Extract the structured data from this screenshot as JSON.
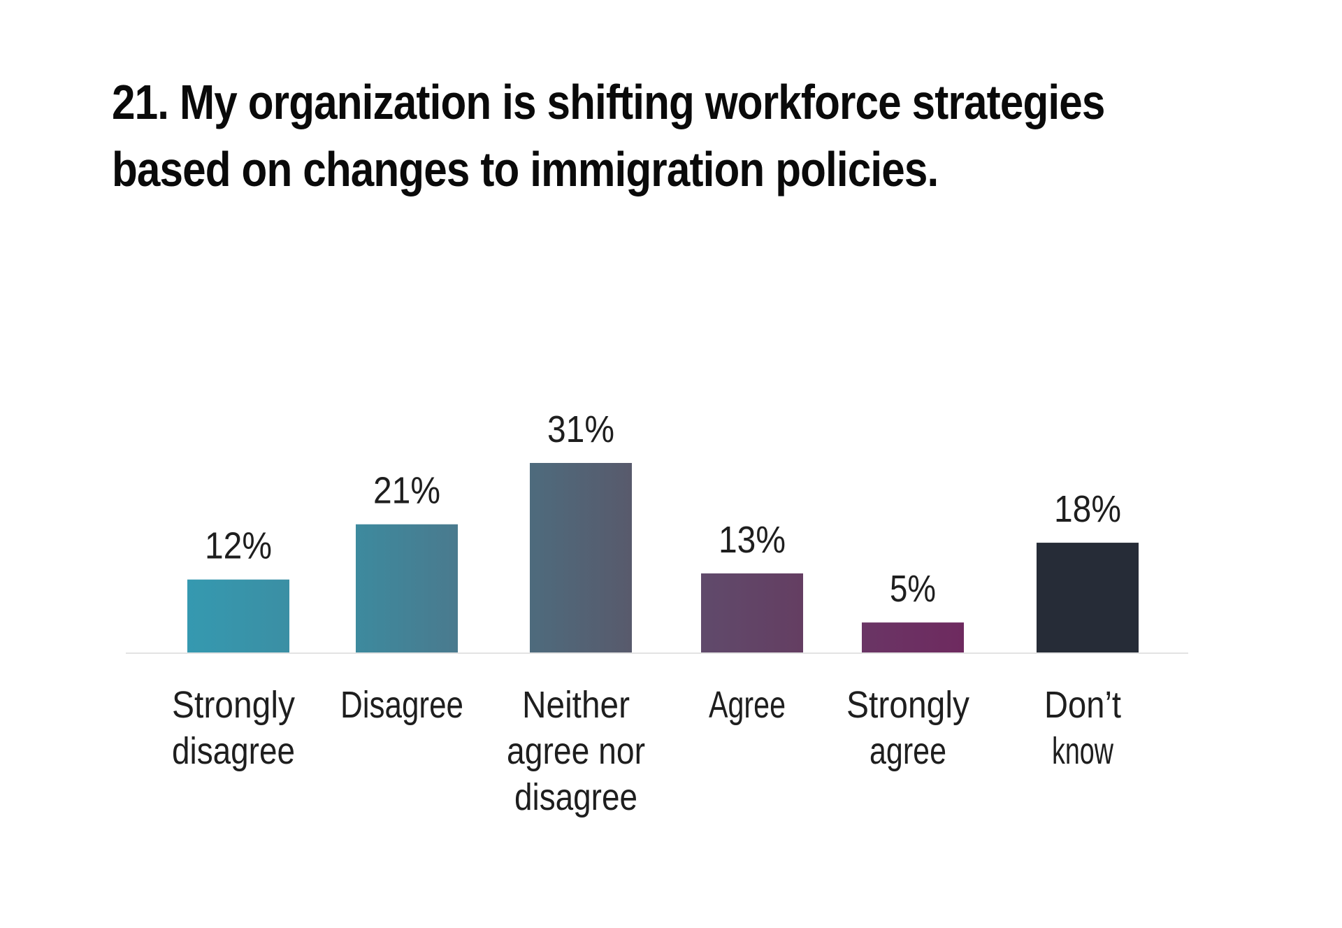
{
  "title_line1": "21. My organization is shifting workforce strategies",
  "title_line2": "based on changes to immigration policies.",
  "chart_data": {
    "type": "bar",
    "title": "21. My organization is shifting workforce strategies based on changes to immigration policies.",
    "categories": [
      [
        "Strongly",
        "disagree"
      ],
      [
        "Disagree"
      ],
      [
        "Neither",
        "agree nor",
        "disagree"
      ],
      [
        "Agree"
      ],
      [
        "Strongly",
        "agree"
      ],
      [
        "Don’t",
        "know"
      ]
    ],
    "values": [
      12,
      21,
      31,
      13,
      5,
      18
    ],
    "value_labels": [
      "12%",
      "21%",
      "31%",
      "13%",
      "5%",
      "18%"
    ],
    "colors": [
      [
        "#3599b0",
        "#3b8fa4"
      ],
      [
        "#3d8a9e",
        "#4a7a8e"
      ],
      [
        "#4e6b7d",
        "#585a6c"
      ],
      [
        "#604a6b",
        "#643e62"
      ],
      [
        "#6a3565",
        "#6e2a5f"
      ],
      [
        "#262c37",
        "#262c37"
      ]
    ],
    "xlabel": "",
    "ylabel": "",
    "ylim": [
      0,
      31
    ],
    "grid": false,
    "legend": "none"
  }
}
